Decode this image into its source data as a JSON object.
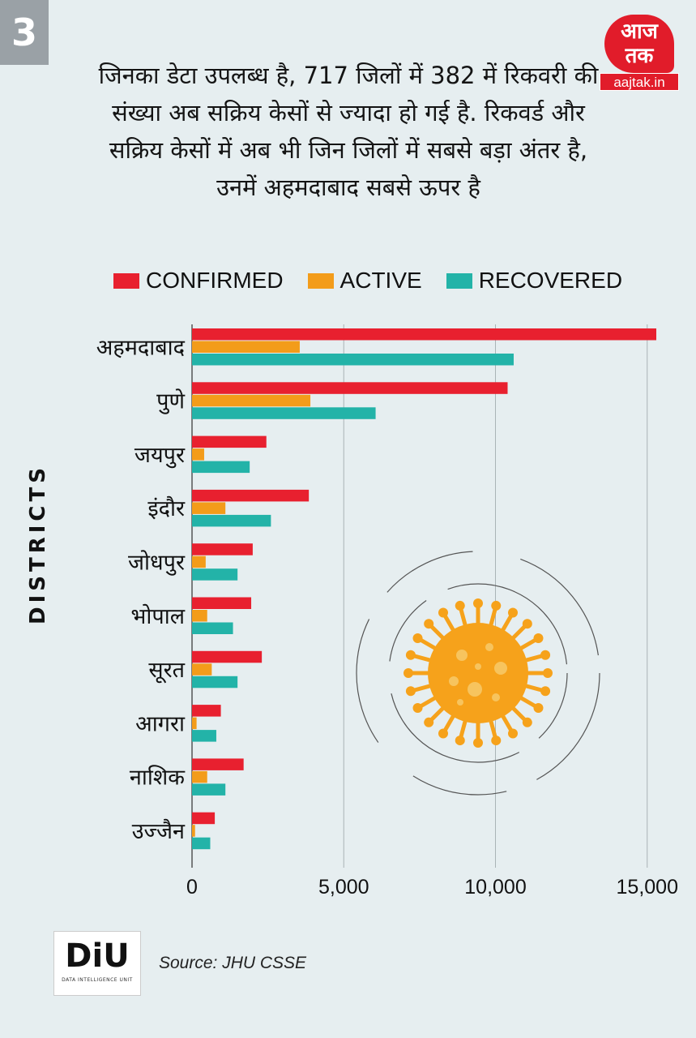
{
  "slide_number": "3",
  "brand": {
    "logo_text": "आज तक",
    "url": "aajtak.in",
    "color": "#e11c2a"
  },
  "headline": "जिनका डेटा उपलब्ध है, 717 जिलों में 382 में रिकवरी की संख्या अब सक्रिय केसों से ज्यादा हो गई है. रिकवर्ड और सक्रिय केसों में अब भी जिन जिलों में सबसे बड़ा अंतर है, उनमें अहमदाबाद सबसे ऊपर है",
  "legend": [
    {
      "label": "CONFIRMED",
      "color": "#e8202f"
    },
    {
      "label": "ACTIVE",
      "color": "#f39c1a"
    },
    {
      "label": "RECOVERED",
      "color": "#23b3a8"
    }
  ],
  "footer": {
    "logo_text": "DiU",
    "logo_subtext": "DATA INTELLIGENCE UNIT",
    "source": "Source: JHU CSSE"
  },
  "chart_data": {
    "type": "bar",
    "orientation": "horizontal",
    "ylabel": "DISTRICTS",
    "xlim": [
      0,
      15300
    ],
    "xticks": [
      0,
      5000,
      10000,
      15000
    ],
    "xtick_labels": [
      "0",
      "5,000",
      "10,000",
      "15,000"
    ],
    "grid": "vertical",
    "legend_position": "top",
    "categories": [
      "अहमदाबाद",
      "पुणे",
      "जयपुर",
      "इंदौर",
      "जोधपुर",
      "भोपाल",
      "सूरत",
      "आगरा",
      "नाशिक",
      "उज्जैन"
    ],
    "series": [
      {
        "name": "CONFIRMED",
        "color": "#e8202f",
        "values": [
          15300,
          10400,
          2450,
          3850,
          2000,
          1950,
          2300,
          950,
          1700,
          750
        ]
      },
      {
        "name": "ACTIVE",
        "color": "#f39c1a",
        "values": [
          3550,
          3900,
          400,
          1100,
          450,
          500,
          650,
          150,
          500,
          100
        ]
      },
      {
        "name": "RECOVERED",
        "color": "#23b3a8",
        "values": [
          10600,
          6050,
          1900,
          2600,
          1500,
          1350,
          1500,
          800,
          1100,
          600
        ]
      }
    ]
  }
}
